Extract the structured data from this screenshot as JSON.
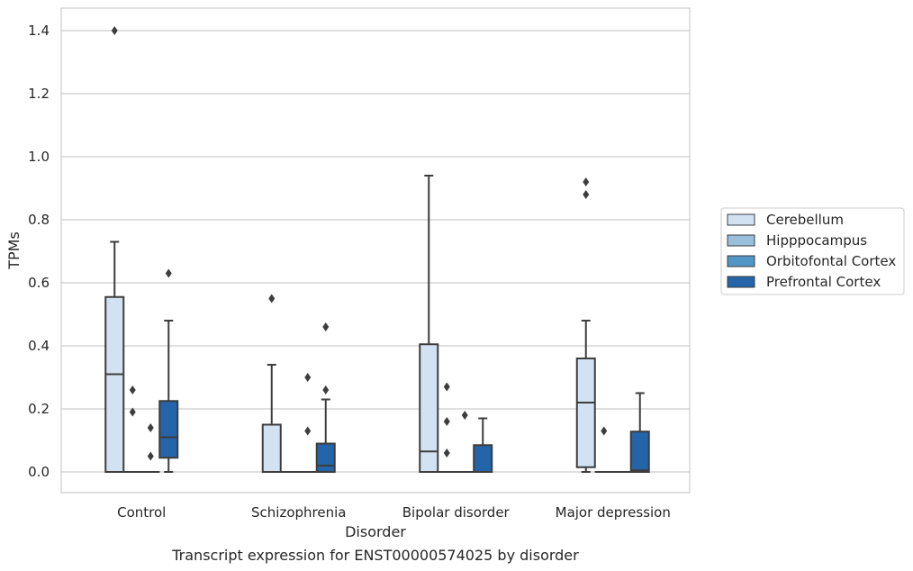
{
  "chart_data": {
    "type": "box",
    "title": "",
    "caption": "Transcript expression for ENST00000574025 by disorder",
    "xlabel": "Disorder",
    "ylabel": "TPMs",
    "ylim": [
      -0.07,
      1.47
    ],
    "yticks": [
      "0.0",
      "0.2",
      "0.4",
      "0.6",
      "0.8",
      "1.0",
      "1.2",
      "1.4"
    ],
    "grid": "horizontal",
    "legend_position": "right",
    "categories": [
      "Control",
      "Schizophrenia",
      "Bipolar disorder",
      "Major depression"
    ],
    "series": [
      {
        "name": "Cerebellum",
        "color": "#d2e2f2",
        "boxes": [
          {
            "whisker_low": 0.0,
            "q1": 0.0,
            "median": 0.31,
            "q3": 0.555,
            "whisker_high": 0.73,
            "outliers": [
              1.4
            ]
          },
          {
            "whisker_low": 0.0,
            "q1": 0.0,
            "median": 0.0,
            "q3": 0.15,
            "whisker_high": 0.34,
            "outliers": [
              0.55
            ]
          },
          {
            "whisker_low": 0.0,
            "q1": 0.0,
            "median": 0.065,
            "q3": 0.405,
            "whisker_high": 0.94,
            "outliers": []
          },
          {
            "whisker_low": 0.0,
            "q1": 0.015,
            "median": 0.22,
            "q3": 0.36,
            "whisker_high": 0.48,
            "outliers": [
              0.88,
              0.92
            ]
          }
        ]
      },
      {
        "name": "Hipppocampus",
        "color": "#98c0dd",
        "boxes": [
          {
            "whisker_low": 0.0,
            "q1": 0.0,
            "median": 0.0,
            "q3": 0.0,
            "whisker_high": 0.0,
            "outliers": [
              0.19,
              0.26
            ]
          },
          {
            "whisker_low": 0.0,
            "q1": 0.0,
            "median": 0.0,
            "q3": 0.0,
            "whisker_high": 0.0,
            "outliers": []
          },
          {
            "whisker_low": 0.0,
            "q1": 0.0,
            "median": 0.0,
            "q3": 0.0,
            "whisker_high": 0.0,
            "outliers": [
              0.06,
              0.16,
              0.27
            ]
          },
          {
            "whisker_low": 0.0,
            "q1": 0.0,
            "median": 0.0,
            "q3": 0.0,
            "whisker_high": 0.0,
            "outliers": [
              0.13
            ]
          }
        ]
      },
      {
        "name": "Orbitofontal Cortex",
        "color": "#5296c6",
        "boxes": [
          {
            "whisker_low": 0.0,
            "q1": 0.0,
            "median": 0.0,
            "q3": 0.0,
            "whisker_high": 0.0,
            "outliers": [
              0.05,
              0.14
            ]
          },
          {
            "whisker_low": 0.0,
            "q1": 0.0,
            "median": 0.0,
            "q3": 0.0,
            "whisker_high": 0.0,
            "outliers": [
              0.13,
              0.3
            ]
          },
          {
            "whisker_low": 0.0,
            "q1": 0.0,
            "median": 0.0,
            "q3": 0.0,
            "whisker_high": 0.0,
            "outliers": [
              0.18
            ]
          },
          {
            "whisker_low": 0.0,
            "q1": 0.0,
            "median": 0.0,
            "q3": 0.0,
            "whisker_high": 0.0,
            "outliers": []
          }
        ]
      },
      {
        "name": "Prefrontal Cortex",
        "color": "#2464a8",
        "boxes": [
          {
            "whisker_low": 0.0,
            "q1": 0.045,
            "median": 0.11,
            "q3": 0.225,
            "whisker_high": 0.48,
            "outliers": [
              0.63
            ]
          },
          {
            "whisker_low": 0.0,
            "q1": 0.0,
            "median": 0.02,
            "q3": 0.09,
            "whisker_high": 0.23,
            "outliers": [
              0.26,
              0.46
            ]
          },
          {
            "whisker_low": 0.0,
            "q1": 0.0,
            "median": 0.0,
            "q3": 0.085,
            "whisker_high": 0.17,
            "outliers": []
          },
          {
            "whisker_low": 0.0,
            "q1": 0.0,
            "median": 0.005,
            "q3": 0.128,
            "whisker_high": 0.25,
            "outliers": []
          }
        ]
      }
    ]
  }
}
